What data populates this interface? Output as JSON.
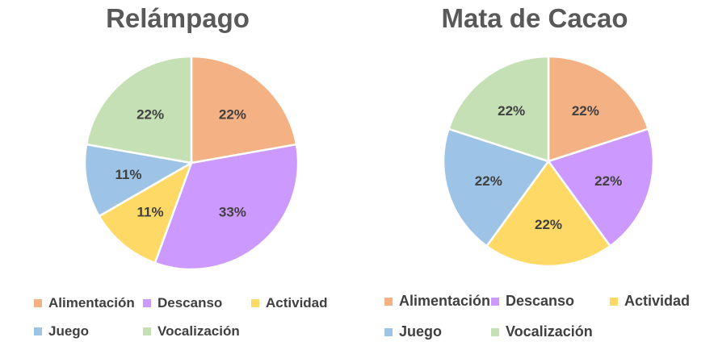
{
  "chart_data": [
    {
      "type": "pie",
      "title": "Relámpago",
      "categories": [
        "Alimentación",
        "Descanso",
        "Actividad",
        "Juego",
        "Vocalización"
      ],
      "values": [
        22,
        33,
        11,
        11,
        22
      ],
      "labels": [
        "22%",
        "33%",
        "11%",
        "11%",
        "22%"
      ],
      "colors": [
        "#F4B183",
        "#CC99FF",
        "#FFD966",
        "#9DC3E6",
        "#C5E0B4"
      ],
      "legend": "bottom"
    },
    {
      "type": "pie",
      "title": "Mata de Cacao",
      "categories": [
        "Alimentación",
        "Descanso",
        "Actividad",
        "Juego",
        "Vocalización"
      ],
      "values": [
        22,
        22,
        22,
        22,
        22
      ],
      "labels": [
        "22%",
        "22%",
        "22%",
        "22%",
        "22%"
      ],
      "colors": [
        "#F4B183",
        "#CC99FF",
        "#FFD966",
        "#9DC3E6",
        "#C5E0B4"
      ],
      "legend": "bottom"
    }
  ]
}
